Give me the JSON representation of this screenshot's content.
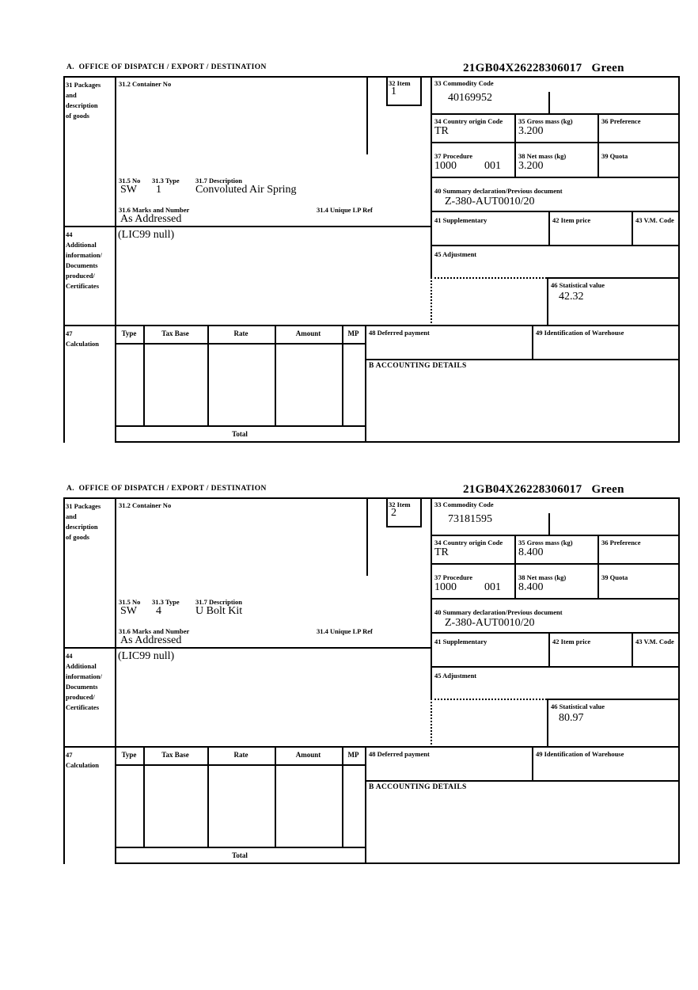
{
  "page": {
    "background": "#ffffff",
    "line_color": "#000000"
  },
  "header_reference": "21GB04X26228306017   Green",
  "labels": {
    "section_a_title": "A.  OFFICE OF DISPATCH / EXPORT / DESTINATION",
    "box31_block": "31 Packages\nand\ndescription\nof goods",
    "box31_2": "31.2 Container No",
    "box32": "32 Item",
    "box33": "33 Commodity Code",
    "box34": "34 Country origin Code",
    "box35": "35 Gross mass (kg)",
    "box36": "36 Preference",
    "box37": "37 Procedure",
    "box38": "38 Net mass (kg)",
    "box39": "39 Quota",
    "box40": "40 Summary declaration/Previous document",
    "box41": "41 Supplementary",
    "box42": "42 Item price",
    "box43": "43 V.M. Code",
    "box31_5": "31.5 No",
    "box31_3": "31.3 Type",
    "box31_7": "31.7 Description",
    "box31_6": "31.6 Marks and Number",
    "box31_4": "31.4 Unique LP Ref",
    "box44_block": "44\nAdditional\ninformation/\nDocuments\nproduced/\nCertificates",
    "box45": "45 Adjustment",
    "box46": "46 Statistical value",
    "box47_block": "47\nCalculation",
    "box48": "48 Deferred payment",
    "box49": "49 Identification of Warehouse",
    "accounting_details": "B ACCOUNTING DETAILS",
    "calc_headers": [
      "Type",
      "Tax Base",
      "Rate",
      "Amount",
      "MP"
    ],
    "total": "Total"
  },
  "items": [
    {
      "item_number": "1",
      "commodity_code": "40169952",
      "country_origin_code": "TR",
      "gross_mass_kg": "3.200",
      "procedure": "1000",
      "procedure_qualifier": "001",
      "net_mass_kg": "3.200",
      "summary_declaration": "Z-380-AUT0010/20",
      "package_no": "SW",
      "package_type": "1",
      "description": "Convoluted Air Spring",
      "marks_and_number": "As Addressed",
      "additional_information": "(LIC99 null)",
      "statistical_value": "42.32"
    },
    {
      "item_number": "2",
      "commodity_code": "73181595",
      "country_origin_code": "TR",
      "gross_mass_kg": "8.400",
      "procedure": "1000",
      "procedure_qualifier": "001",
      "net_mass_kg": "8.400",
      "summary_declaration": "Z-380-AUT0010/20",
      "package_no": "SW",
      "package_type": "4",
      "description": "U Bolt Kit",
      "marks_and_number": "As Addressed",
      "additional_information": "(LIC99 null)",
      "statistical_value": "80.97"
    }
  ]
}
